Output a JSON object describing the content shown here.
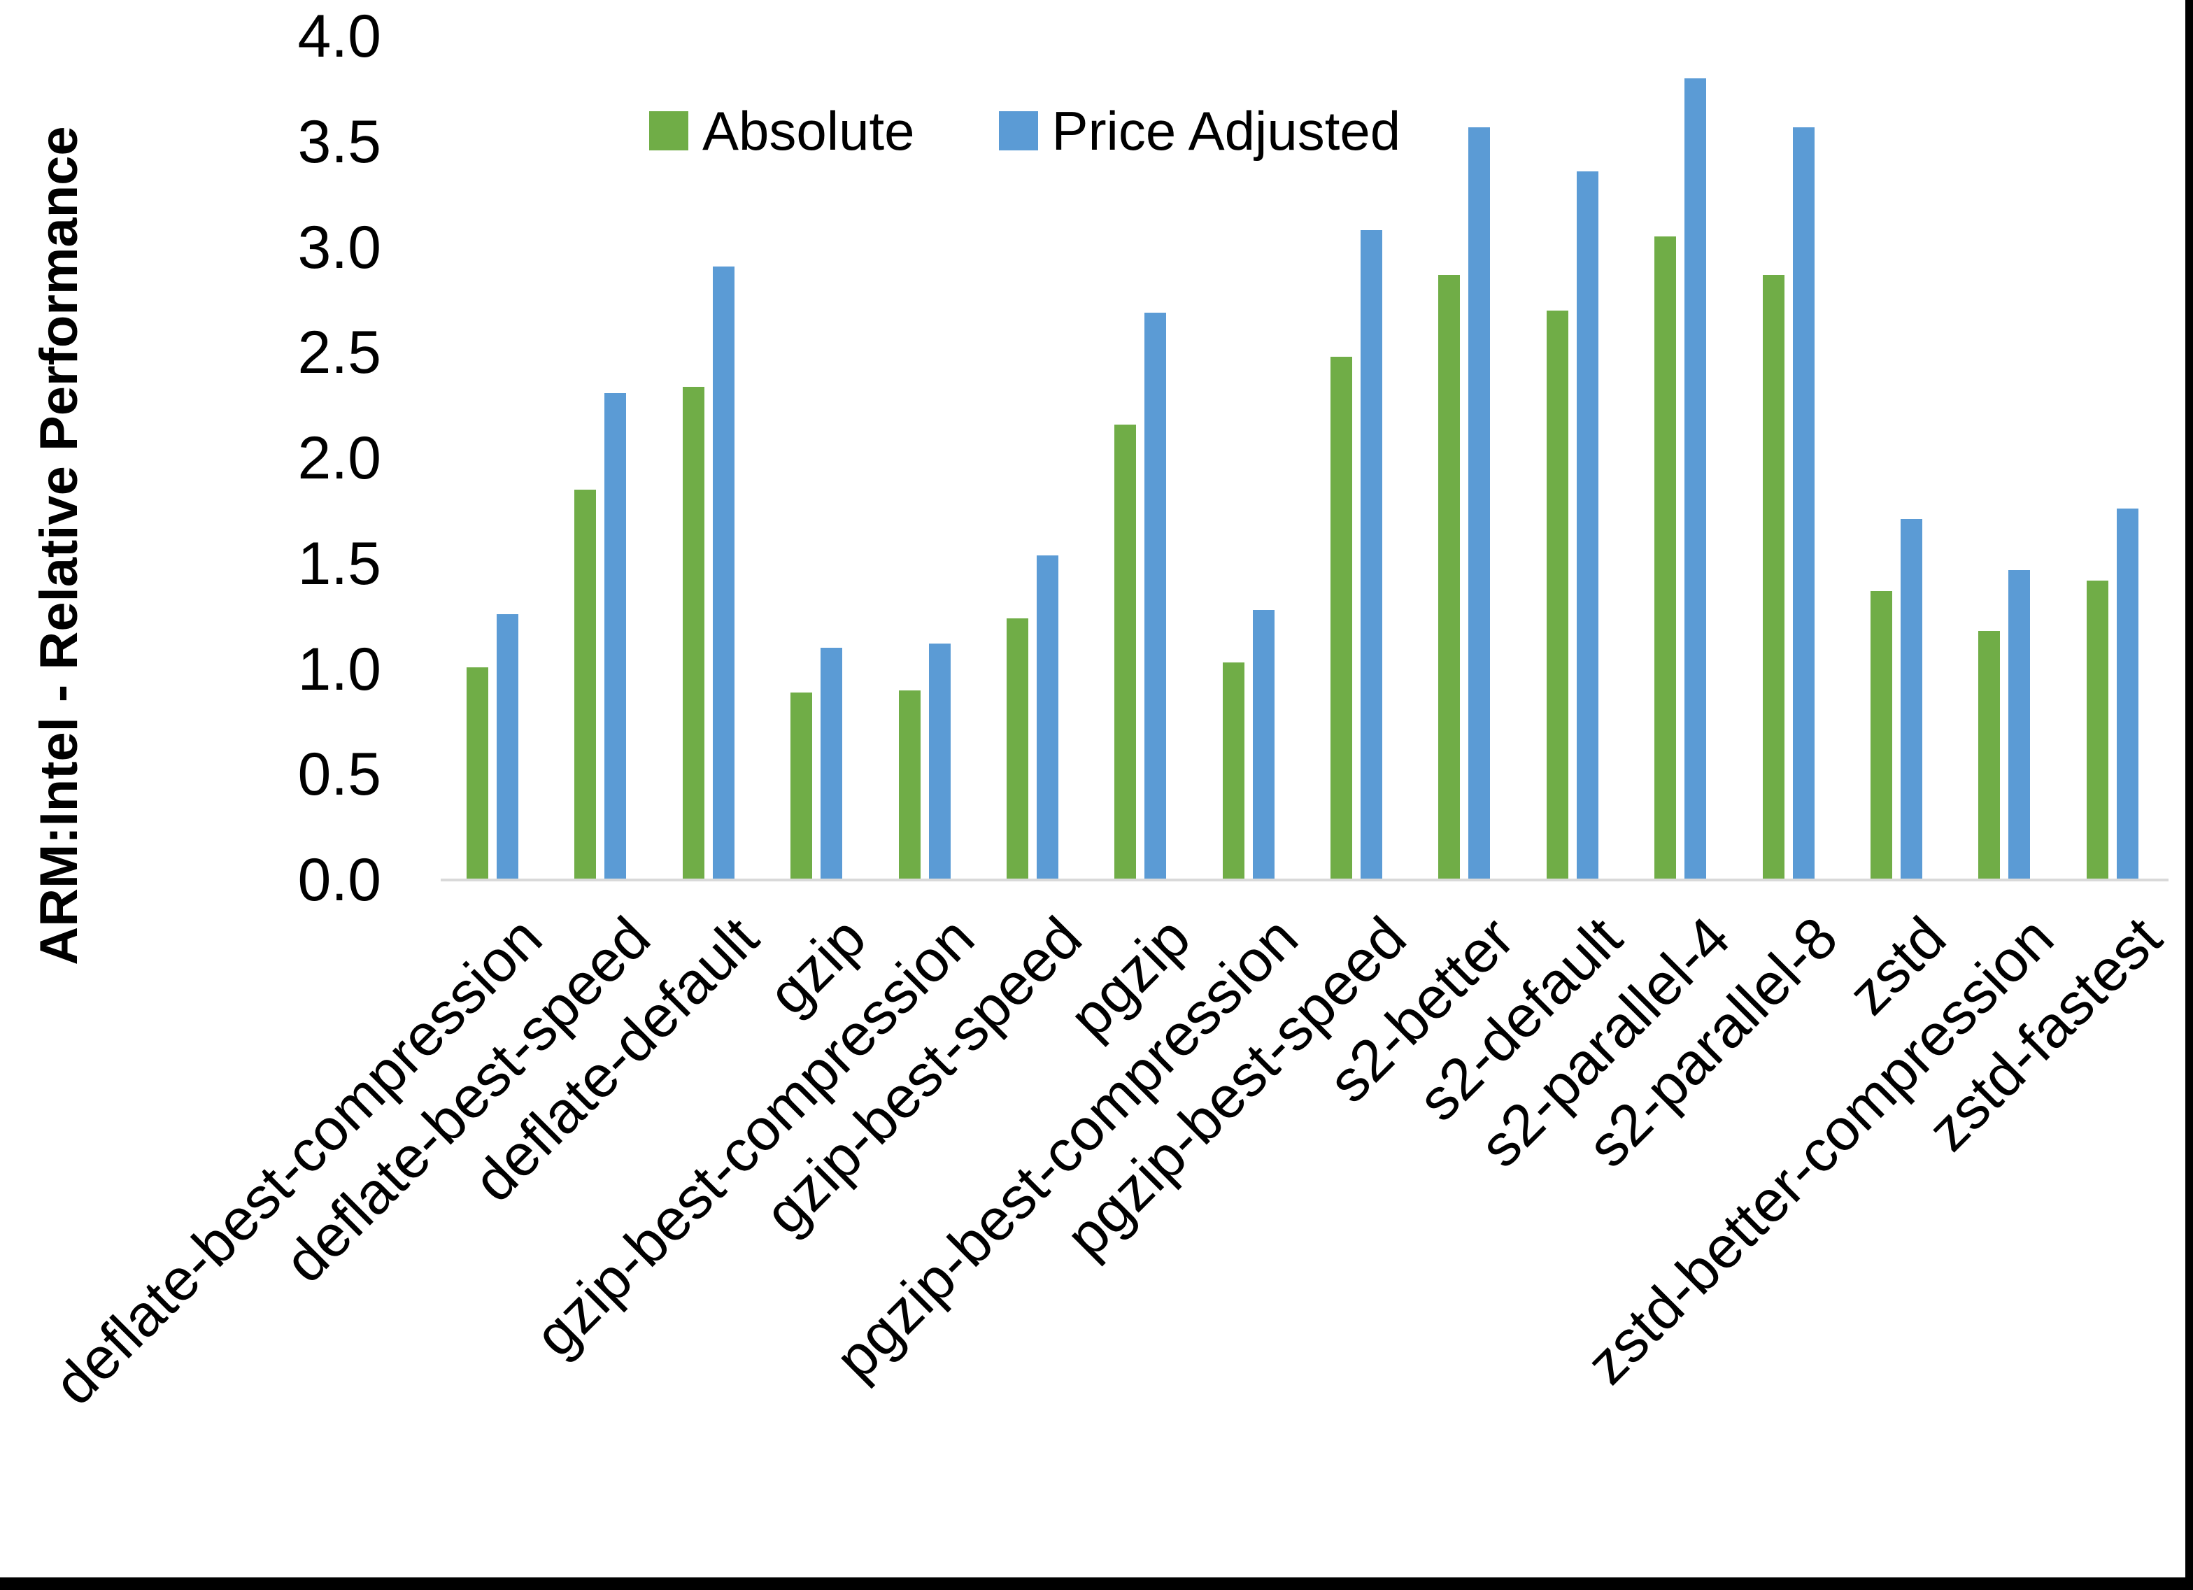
{
  "figure": {
    "y_axis_title": "ARM:Intel - Relative Performance"
  },
  "chart_data": {
    "type": "bar",
    "title": "",
    "xlabel": "",
    "ylabel": "ARM:Intel - Relative Performance",
    "categories": [
      "deflate-best-compression",
      "deflate-best-speed",
      "deflate-default",
      "gzip",
      "gzip-best-compression",
      "gzip-best-speed",
      "pgzip",
      "pgzip-best-compression",
      "pgzip-best-speed",
      "s2-better",
      "s2-default",
      "s2-parallel-4",
      "s2-parallel-8",
      "zstd",
      "zstd-better-compression",
      "zstd-fastest"
    ],
    "series": [
      {
        "name": "Absolute",
        "color": "#70AD47",
        "values": [
          1.01,
          1.85,
          2.34,
          0.89,
          0.9,
          1.24,
          2.16,
          1.03,
          2.48,
          2.87,
          2.7,
          3.05,
          2.87,
          1.37,
          1.18,
          1.42
        ]
      },
      {
        "name": "Price Adjusted",
        "color": "#5B9BD5",
        "values": [
          1.26,
          2.31,
          2.91,
          1.1,
          1.12,
          1.54,
          2.69,
          1.28,
          3.08,
          3.57,
          3.36,
          3.8,
          3.57,
          1.71,
          1.47,
          1.76
        ]
      }
    ],
    "ylim": [
      0.0,
      4.0
    ],
    "y_ticks": [
      "0.0",
      "0.5",
      "1.0",
      "1.5",
      "2.0",
      "2.5",
      "3.0",
      "3.5",
      "4.0"
    ],
    "grid": false,
    "legend_position": "top-center",
    "axis_line_color": "#D9D9D9",
    "text_color": "#000000"
  }
}
